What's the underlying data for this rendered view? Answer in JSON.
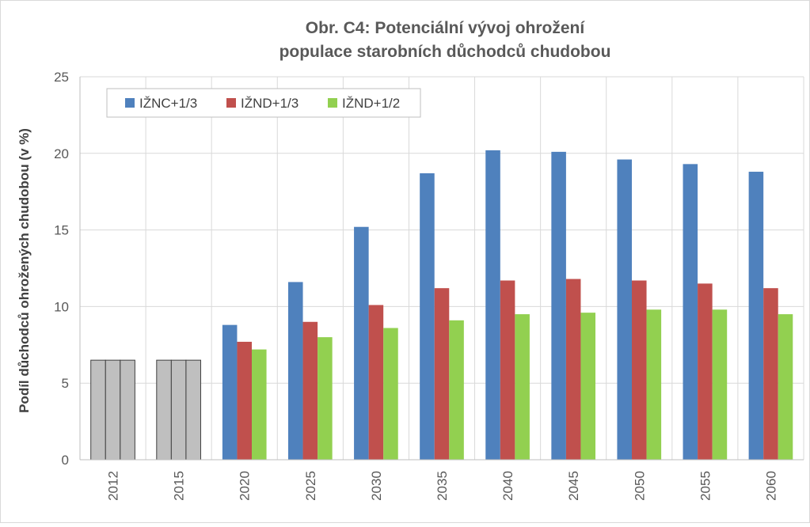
{
  "chart_data": {
    "type": "bar",
    "title": "Obr. C4: Potenciální vývoj ohrožení",
    "subtitle": "populace starobních důchodců chudobou",
    "xlabel": "",
    "ylabel": "Podíl důchodců ohrožených chudobou (v %)",
    "ylim": [
      0,
      25
    ],
    "yticks": [
      0,
      5,
      10,
      15,
      20,
      25
    ],
    "grid": true,
    "legend_position": "top-left",
    "categories": [
      "2012",
      "2015",
      "2020",
      "2025",
      "2030",
      "2035",
      "2040",
      "2045",
      "2050",
      "2055",
      "2060"
    ],
    "baseline_color": "#bfbfbf",
    "baseline_categories": [
      "2012",
      "2015"
    ],
    "series": [
      {
        "name": "IŽNC+1/3",
        "color": "#4f81bd",
        "values": [
          6.5,
          6.5,
          8.8,
          11.6,
          15.2,
          18.7,
          20.2,
          20.1,
          19.6,
          19.3,
          18.8
        ]
      },
      {
        "name": "IŽND+1/3",
        "color": "#c0504d",
        "values": [
          6.5,
          6.5,
          7.7,
          9.0,
          10.1,
          11.2,
          11.7,
          11.8,
          11.7,
          11.5,
          11.2
        ]
      },
      {
        "name": "IŽND+1/2",
        "color": "#92d050",
        "values": [
          6.5,
          6.5,
          7.2,
          8.0,
          8.6,
          9.1,
          9.5,
          9.6,
          9.8,
          9.8,
          9.5
        ]
      }
    ]
  }
}
